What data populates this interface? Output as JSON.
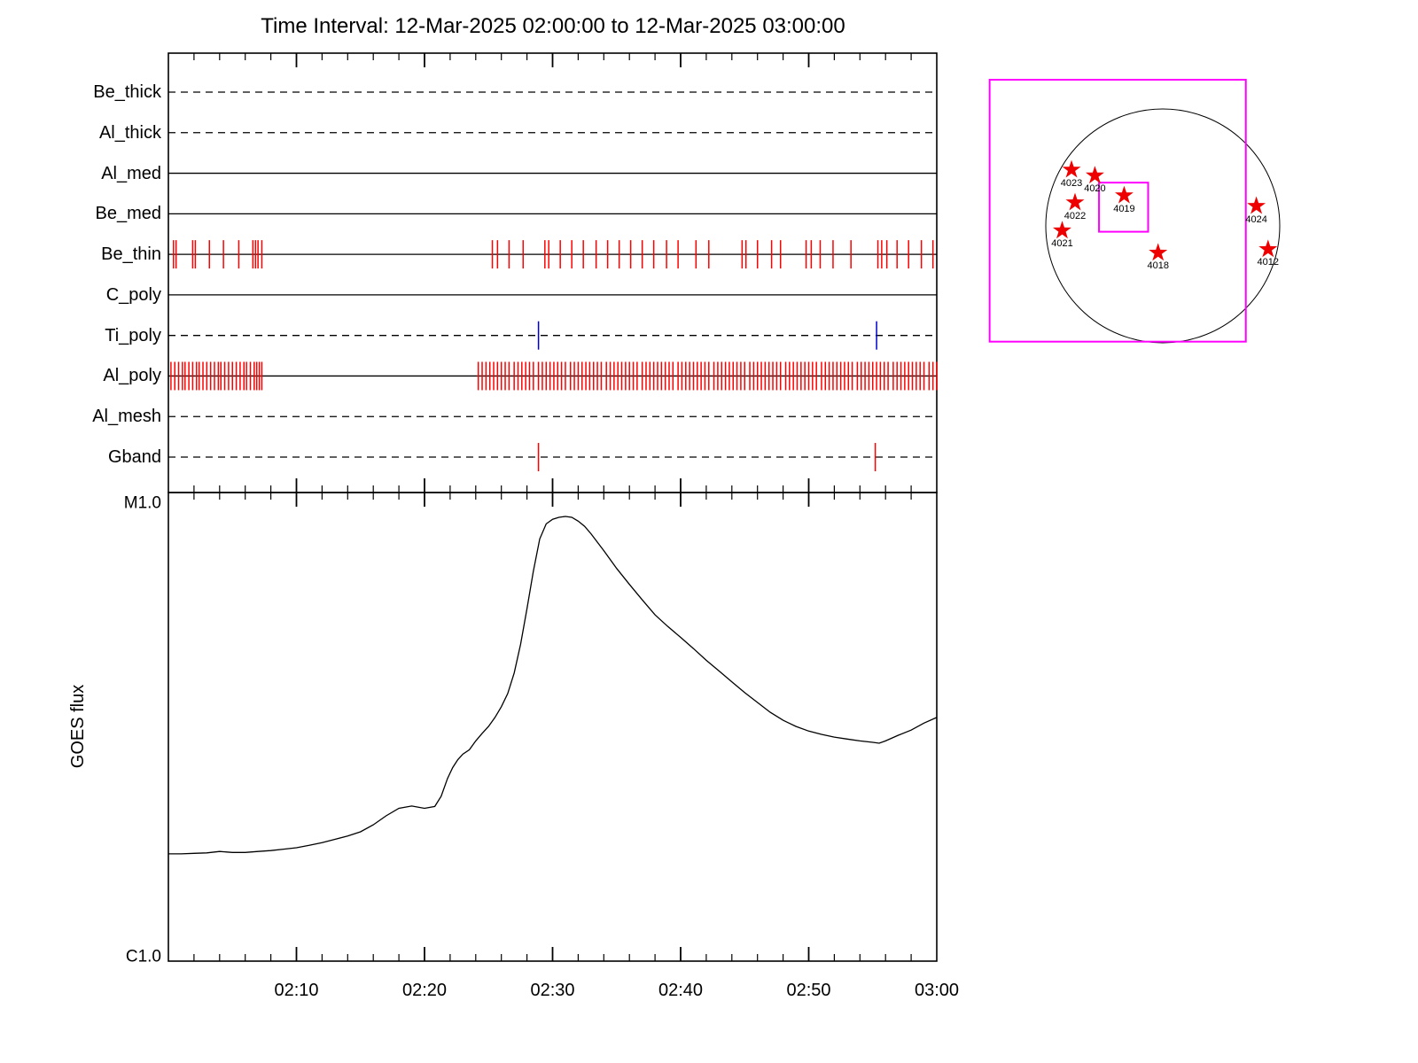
{
  "colors": {
    "axis": "#000000",
    "exposure_tick": "#ff0000",
    "special_tick": "#0000cd",
    "fov_box": "#ff00ff",
    "star_marker": "#ee0000"
  },
  "chart_data": [
    {
      "id": "xrt-filter-exposure-timeline",
      "type": "scatter",
      "title": "Time Interval: 12-Mar-2025 02:00:00 to 12-Mar-2025 03:00:00",
      "x_unit": "minutes after 02:00:00",
      "x_range": [
        0,
        60
      ],
      "grid": false,
      "rows": [
        {
          "label": "Be_thick",
          "line_style": "dashed",
          "tick_color": null,
          "ticks": []
        },
        {
          "label": "Al_thick",
          "line_style": "dashed",
          "tick_color": null,
          "ticks": []
        },
        {
          "label": "Al_med",
          "line_style": "solid",
          "tick_color": null,
          "ticks": []
        },
        {
          "label": "Be_med",
          "line_style": "solid",
          "tick_color": null,
          "ticks": []
        },
        {
          "label": "Be_thin",
          "line_style": "solid",
          "tick_color": "#ff0000",
          "ticks": [
            0.4,
            0.6,
            1.9,
            2.1,
            3.2,
            4.3,
            5.5,
            6.6,
            6.8,
            7.0,
            7.3,
            25.3,
            25.7,
            26.6,
            27.7,
            29.4,
            29.7,
            30.6,
            31.5,
            32.4,
            33.4,
            34.3,
            35.2,
            36.1,
            37.0,
            37.9,
            38.9,
            39.8,
            41.2,
            42.2,
            44.8,
            45.1,
            46.0,
            47.1,
            47.8,
            49.8,
            50.2,
            50.9,
            51.9,
            53.3,
            55.4,
            55.7,
            56.1,
            56.9,
            57.8,
            58.8,
            59.7
          ]
        },
        {
          "label": "C_poly",
          "line_style": "solid",
          "tick_color": null,
          "ticks": []
        },
        {
          "label": "Ti_poly",
          "line_style": "dashed",
          "tick_color": "#0000cd",
          "ticks": [
            28.9,
            55.3
          ]
        },
        {
          "label": "Al_poly",
          "line_style": "solid",
          "tick_color": "#ff0000",
          "ticks": [
            0.2,
            0.5,
            0.8,
            1.1,
            1.3,
            1.6,
            1.9,
            2.2,
            2.4,
            2.7,
            3.0,
            3.3,
            3.6,
            3.9,
            4.1,
            4.4,
            4.7,
            5.0,
            5.3,
            5.6,
            5.9,
            6.1,
            6.4,
            6.7,
            6.9,
            7.1,
            7.3,
            24.2,
            24.5,
            24.8,
            25.1,
            25.4,
            25.7,
            26.0,
            26.3,
            26.6,
            27.0,
            27.3,
            27.6,
            27.9,
            28.2,
            28.5,
            28.9,
            29.2,
            29.5,
            29.8,
            30.1,
            30.4,
            30.7,
            31.0,
            31.4,
            31.7,
            32.0,
            32.3,
            32.6,
            32.9,
            33.2,
            33.5,
            33.8,
            34.2,
            34.5,
            34.8,
            35.1,
            35.4,
            35.7,
            36.0,
            36.3,
            36.6,
            37.0,
            37.3,
            37.6,
            37.9,
            38.2,
            38.5,
            38.8,
            39.1,
            39.4,
            39.8,
            40.1,
            40.4,
            40.7,
            41.0,
            41.3,
            41.6,
            41.9,
            42.2,
            42.6,
            42.9,
            43.2,
            43.5,
            43.8,
            44.1,
            44.4,
            44.7,
            45.0,
            45.4,
            45.7,
            46.0,
            46.3,
            46.6,
            46.9,
            47.2,
            47.5,
            47.8,
            48.2,
            48.5,
            48.8,
            49.1,
            49.4,
            49.7,
            50.0,
            50.3,
            50.6,
            51.0,
            51.3,
            51.6,
            51.9,
            52.2,
            52.5,
            52.8,
            53.1,
            53.4,
            53.8,
            54.1,
            54.4,
            54.7,
            55.0,
            55.3,
            55.6,
            55.9,
            56.2,
            56.6,
            56.9,
            57.2,
            57.5,
            57.8,
            58.1,
            58.4,
            58.7,
            59.0,
            59.4,
            59.7,
            60.0
          ]
        },
        {
          "label": "Al_mesh",
          "line_style": "dashed",
          "tick_color": null,
          "ticks": []
        },
        {
          "label": "Gband",
          "line_style": "dashed",
          "tick_color": "#ff0000",
          "ticks": [
            28.9,
            55.2
          ]
        }
      ]
    },
    {
      "id": "goes-flux",
      "type": "line",
      "ylabel": "GOES flux",
      "yaxis": {
        "top_label": "M1.0",
        "bottom_label": "C1.0",
        "scale": "log"
      },
      "x_range": [
        0,
        60
      ],
      "xticks": [
        {
          "minute": 10,
          "label": "02:10"
        },
        {
          "minute": 20,
          "label": "02:20"
        },
        {
          "minute": 30,
          "label": "02:30"
        },
        {
          "minute": 40,
          "label": "02:40"
        },
        {
          "minute": 50,
          "label": "02:50"
        },
        {
          "minute": 60,
          "label": "03:00"
        }
      ],
      "points_note": "pairs of [minute, normalized log flux] where 0 = C1.0 and 1 = M1.0",
      "points": [
        [
          0,
          0.229
        ],
        [
          1,
          0.229
        ],
        [
          2,
          0.23
        ],
        [
          3,
          0.231
        ],
        [
          4,
          0.234
        ],
        [
          5,
          0.232
        ],
        [
          6,
          0.232
        ],
        [
          7,
          0.234
        ],
        [
          8,
          0.236
        ],
        [
          9,
          0.239
        ],
        [
          10,
          0.242
        ],
        [
          11,
          0.247
        ],
        [
          12,
          0.253
        ],
        [
          13,
          0.26
        ],
        [
          14,
          0.267
        ],
        [
          15,
          0.276
        ],
        [
          16,
          0.291
        ],
        [
          17,
          0.31
        ],
        [
          18,
          0.326
        ],
        [
          19,
          0.331
        ],
        [
          20,
          0.326
        ],
        [
          20.8,
          0.33
        ],
        [
          21.3,
          0.352
        ],
        [
          21.8,
          0.39
        ],
        [
          22.2,
          0.413
        ],
        [
          22.6,
          0.43
        ],
        [
          23,
          0.442
        ],
        [
          23.5,
          0.451
        ],
        [
          24,
          0.47
        ],
        [
          24.5,
          0.486
        ],
        [
          25,
          0.501
        ],
        [
          25.5,
          0.52
        ],
        [
          26,
          0.543
        ],
        [
          26.5,
          0.571
        ],
        [
          27,
          0.615
        ],
        [
          27.5,
          0.676
        ],
        [
          28,
          0.752
        ],
        [
          28.5,
          0.832
        ],
        [
          29,
          0.901
        ],
        [
          29.5,
          0.933
        ],
        [
          30,
          0.943
        ],
        [
          30.5,
          0.947
        ],
        [
          31,
          0.949
        ],
        [
          31.5,
          0.947
        ],
        [
          32,
          0.939
        ],
        [
          32.5,
          0.928
        ],
        [
          33,
          0.912
        ],
        [
          34,
          0.876
        ],
        [
          35,
          0.838
        ],
        [
          36,
          0.804
        ],
        [
          37,
          0.771
        ],
        [
          38,
          0.739
        ],
        [
          39,
          0.714
        ],
        [
          40,
          0.691
        ],
        [
          41,
          0.667
        ],
        [
          42,
          0.642
        ],
        [
          43,
          0.619
        ],
        [
          44,
          0.596
        ],
        [
          45,
          0.573
        ],
        [
          46,
          0.552
        ],
        [
          47,
          0.531
        ],
        [
          48,
          0.514
        ],
        [
          49,
          0.501
        ],
        [
          50,
          0.491
        ],
        [
          51,
          0.484
        ],
        [
          52,
          0.478
        ],
        [
          53,
          0.474
        ],
        [
          54,
          0.47
        ],
        [
          55,
          0.467
        ],
        [
          55.5,
          0.465
        ],
        [
          56,
          0.47
        ],
        [
          57,
          0.482
        ],
        [
          58,
          0.493
        ],
        [
          59,
          0.508
        ],
        [
          60,
          0.52
        ]
      ]
    },
    {
      "id": "full-disk-pointing-map",
      "type": "scatter",
      "marker": "star",
      "units": "solar radii from disk center",
      "regions": [
        {
          "label": "4023",
          "x": -0.78,
          "y": -0.48
        },
        {
          "label": "4020",
          "x": -0.58,
          "y": -0.43
        },
        {
          "label": "4022",
          "x": -0.75,
          "y": -0.2
        },
        {
          "label": "4019",
          "x": -0.33,
          "y": -0.26
        },
        {
          "label": "4021",
          "x": -0.86,
          "y": 0.04
        },
        {
          "label": "4024",
          "x": 0.8,
          "y": -0.17
        },
        {
          "label": "4018",
          "x": -0.04,
          "y": 0.23
        },
        {
          "label": "4012",
          "x": 0.9,
          "y": 0.2
        }
      ],
      "fov_boxes": [
        {
          "x": -1.48,
          "y": -1.25,
          "w": 2.19,
          "h": 2.24
        },
        {
          "x": -0.545,
          "y": -0.37,
          "w": 0.42,
          "h": 0.42
        }
      ]
    }
  ]
}
